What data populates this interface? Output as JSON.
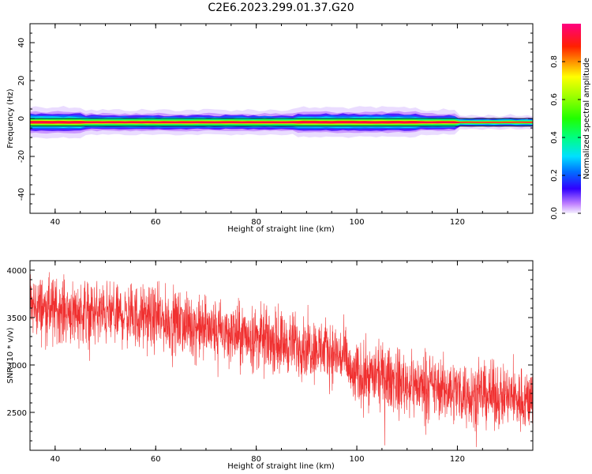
{
  "chart_data": [
    {
      "type": "heatmap",
      "title": "C2E6.2023.299.01.37.G20",
      "xlabel": "Height of straight line (km)",
      "ylabel": "Frequency (Hz)",
      "xlim": [
        35,
        135
      ],
      "ylim": [
        -50,
        50
      ],
      "xticks": [
        40,
        60,
        80,
        100,
        120
      ],
      "yticks": [
        40,
        20,
        0,
        -20,
        -40
      ],
      "colorbar": {
        "label": "Normalized spectral amplitude",
        "range": [
          0.0,
          1.0
        ],
        "ticks": [
          0.0,
          0.2,
          0.4,
          0.6,
          0.8
        ],
        "tick_labels": [
          "0.0",
          "0.2",
          "0.4",
          "0.6",
          "0.8"
        ],
        "colormap": "gist_ncar-like (white, violet, blue, cyan, green, yellow, orange, red, pink)"
      },
      "band": {
        "center_frequency_hz": -2,
        "note": "narrow high-amplitude band near -2 Hz spanning the full height range"
      }
    },
    {
      "type": "line",
      "xlabel": "Height of straight line (km)",
      "ylabel": "SNR (10 * v/v)",
      "xlim": [
        35,
        135
      ],
      "ylim": [
        2100,
        4100
      ],
      "xticks": [
        40,
        60,
        80,
        100,
        120
      ],
      "yticks": [
        2500,
        3000,
        3500,
        4000
      ],
      "color": "#f03030",
      "trend_x": [
        35,
        40,
        45,
        50,
        55,
        60,
        65,
        70,
        75,
        80,
        85,
        90,
        95,
        98,
        99,
        100,
        105,
        110,
        115,
        120,
        125,
        130,
        135
      ],
      "trend_y": [
        3620,
        3590,
        3560,
        3540,
        3520,
        3490,
        3440,
        3380,
        3330,
        3290,
        3240,
        3200,
        3130,
        3060,
        2850,
        2900,
        2880,
        2800,
        2760,
        2730,
        2690,
        2660,
        2640
      ],
      "noise_amplitude": 180
    }
  ]
}
